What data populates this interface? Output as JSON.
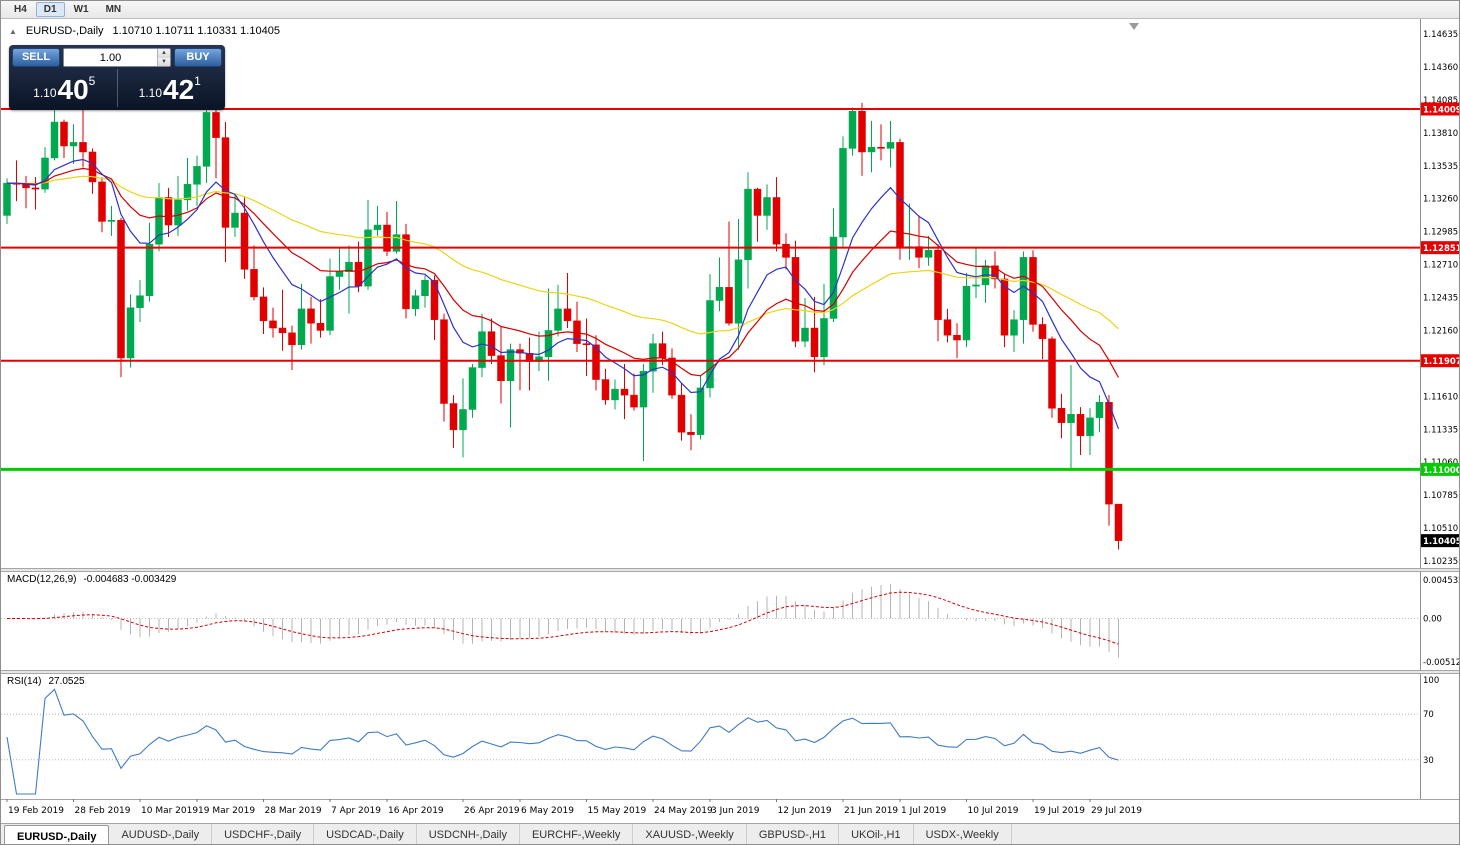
{
  "toolbar": {
    "timeframes": [
      {
        "label": "H4",
        "active": false
      },
      {
        "label": "D1",
        "active": true
      },
      {
        "label": "W1",
        "active": false
      },
      {
        "label": "MN",
        "active": false
      }
    ]
  },
  "chart_header": {
    "symbol": "EURUSD-,Daily",
    "ohlc_line": "1.10710 1.10711 1.10331 1.10405"
  },
  "icons": {
    "one_click_toggle": "▲",
    "spin_up": "▲",
    "spin_down": "▼",
    "shift_marker": "▼"
  },
  "one_click": {
    "sell_label": "SELL",
    "buy_label": "BUY",
    "volume": "1.00",
    "sell_price": {
      "prefix": "1.10",
      "big": "40",
      "sup": "5"
    },
    "buy_price": {
      "prefix": "1.10",
      "big": "42",
      "sup": "1"
    }
  },
  "indicators": {
    "macd": {
      "label": "MACD(12,26,9)",
      "values": "-0.004683 -0.003429"
    },
    "rsi": {
      "label": "RSI(14)",
      "value": "27.0525"
    }
  },
  "tabs": [
    {
      "label": "EURUSD-,Daily",
      "active": true
    },
    {
      "label": "AUDUSD-,Daily",
      "active": false
    },
    {
      "label": "USDCHF-,Daily",
      "active": false
    },
    {
      "label": "USDCAD-,Daily",
      "active": false
    },
    {
      "label": "USDCNH-,Daily",
      "active": false
    },
    {
      "label": "EURCHF-,Weekly",
      "active": false
    },
    {
      "label": "XAUUSD-,Weekly",
      "active": false
    },
    {
      "label": "GBPUSD-,H1",
      "active": false
    },
    {
      "label": "UKOil-,H1",
      "active": false
    },
    {
      "label": "USDX-,Weekly",
      "active": false
    }
  ],
  "chart_data": {
    "type": "candlestick",
    "title": "EURUSD-,Daily",
    "symbol": "EURUSD",
    "timeframe": "Daily",
    "colors": {
      "bull": "#00a950",
      "bear": "#e00000"
    },
    "y_axis": {
      "max": 1.14635,
      "min": 1.10235,
      "step": 0.00275,
      "labels": [
        "1.14635",
        "1.14360",
        "1.14085",
        "1.13810",
        "1.13535",
        "1.13260",
        "1.12985",
        "1.12710",
        "1.12435",
        "1.12160",
        "1.11885",
        "1.11610",
        "1.11335",
        "1.11060",
        "1.10785",
        "1.10510",
        "1.10235"
      ]
    },
    "x_ticks": [
      {
        "i": 0,
        "label": "19 Feb 2019"
      },
      {
        "i": 7,
        "label": "28 Feb 2019"
      },
      {
        "i": 14,
        "label": "10 Mar 2019"
      },
      {
        "i": 20,
        "label": "19 Mar 2019"
      },
      {
        "i": 27,
        "label": "28 Mar 2019"
      },
      {
        "i": 34,
        "label": "7 Apr 2019"
      },
      {
        "i": 40,
        "label": "16 Apr 2019"
      },
      {
        "i": 48,
        "label": "26 Apr 2019"
      },
      {
        "i": 54,
        "label": "6 May 2019"
      },
      {
        "i": 61,
        "label": "15 May 2019"
      },
      {
        "i": 68,
        "label": "24 May 2019"
      },
      {
        "i": 74,
        "label": "3 Jun 2019"
      },
      {
        "i": 81,
        "label": "12 Jun 2019"
      },
      {
        "i": 88,
        "label": "21 Jun 2019"
      },
      {
        "i": 94,
        "label": "1 Jul 2019"
      },
      {
        "i": 101,
        "label": "10 Jul 2019"
      },
      {
        "i": 108,
        "label": "19 Jul 2019"
      },
      {
        "i": 114,
        "label": "29 Jul 2019"
      }
    ],
    "dates": [
      "2019-02-19",
      "2019-02-20",
      "2019-02-21",
      "2019-02-22",
      "2019-02-25",
      "2019-02-26",
      "2019-02-27",
      "2019-02-28",
      "2019-03-01",
      "2019-03-04",
      "2019-03-05",
      "2019-03-06",
      "2019-03-07",
      "2019-03-08",
      "2019-03-11",
      "2019-03-12",
      "2019-03-13",
      "2019-03-14",
      "2019-03-15",
      "2019-03-18",
      "2019-03-19",
      "2019-03-20",
      "2019-03-21",
      "2019-03-22",
      "2019-03-25",
      "2019-03-26",
      "2019-03-27",
      "2019-03-28",
      "2019-03-29",
      "2019-04-01",
      "2019-04-02",
      "2019-04-03",
      "2019-04-04",
      "2019-04-05",
      "2019-04-08",
      "2019-04-09",
      "2019-04-10",
      "2019-04-11",
      "2019-04-12",
      "2019-04-15",
      "2019-04-16",
      "2019-04-17",
      "2019-04-18",
      "2019-04-19",
      "2019-04-22",
      "2019-04-23",
      "2019-04-24",
      "2019-04-25",
      "2019-04-26",
      "2019-04-29",
      "2019-04-30",
      "2019-05-01",
      "2019-05-02",
      "2019-05-03",
      "2019-05-06",
      "2019-05-07",
      "2019-05-08",
      "2019-05-09",
      "2019-05-10",
      "2019-05-13",
      "2019-05-14",
      "2019-05-15",
      "2019-05-16",
      "2019-05-17",
      "2019-05-20",
      "2019-05-21",
      "2019-05-22",
      "2019-05-23",
      "2019-05-24",
      "2019-05-27",
      "2019-05-28",
      "2019-05-29",
      "2019-05-30",
      "2019-05-31",
      "2019-06-03",
      "2019-06-04",
      "2019-06-05",
      "2019-06-06",
      "2019-06-07",
      "2019-06-10",
      "2019-06-11",
      "2019-06-12",
      "2019-06-13",
      "2019-06-14",
      "2019-06-17",
      "2019-06-18",
      "2019-06-19",
      "2019-06-20",
      "2019-06-21",
      "2019-06-24",
      "2019-06-25",
      "2019-06-26",
      "2019-06-27",
      "2019-06-28",
      "2019-07-01",
      "2019-07-02",
      "2019-07-03",
      "2019-07-04",
      "2019-07-05",
      "2019-07-08",
      "2019-07-09",
      "2019-07-10",
      "2019-07-11",
      "2019-07-12",
      "2019-07-15",
      "2019-07-16",
      "2019-07-17",
      "2019-07-18",
      "2019-07-19",
      "2019-07-22",
      "2019-07-23",
      "2019-07-24",
      "2019-07-25",
      "2019-07-26",
      "2019-07-29",
      "2019-07-30",
      "2019-07-31",
      "2019-08-01"
    ],
    "ohlc": [
      [
        1.1312,
        1.1343,
        1.1305,
        1.1339
      ],
      [
        1.1339,
        1.1358,
        1.1324,
        1.1338
      ],
      [
        1.1338,
        1.1345,
        1.1318,
        1.1335
      ],
      [
        1.1335,
        1.1344,
        1.1317,
        1.1334
      ],
      [
        1.1334,
        1.1369,
        1.1331,
        1.136
      ],
      [
        1.136,
        1.1401,
        1.1358,
        1.139
      ],
      [
        1.139,
        1.1392,
        1.136,
        1.137
      ],
      [
        1.137,
        1.1388,
        1.1355,
        1.1373
      ],
      [
        1.1373,
        1.14,
        1.1352,
        1.1365
      ],
      [
        1.1365,
        1.1368,
        1.133,
        1.134
      ],
      [
        1.134,
        1.1344,
        1.1298,
        1.1307
      ],
      [
        1.1307,
        1.132,
        1.1295,
        1.1308
      ],
      [
        1.1308,
        1.131,
        1.1177,
        1.1193
      ],
      [
        1.1193,
        1.1246,
        1.1185,
        1.1235
      ],
      [
        1.1235,
        1.1258,
        1.1223,
        1.1245
      ],
      [
        1.1245,
        1.1306,
        1.124,
        1.1288
      ],
      [
        1.1288,
        1.1339,
        1.1282,
        1.1327
      ],
      [
        1.1327,
        1.1335,
        1.1294,
        1.1304
      ],
      [
        1.1304,
        1.1345,
        1.1295,
        1.1325
      ],
      [
        1.1325,
        1.136,
        1.1316,
        1.1338
      ],
      [
        1.1338,
        1.1362,
        1.132,
        1.1353
      ],
      [
        1.1353,
        1.1405,
        1.1339,
        1.1398
      ],
      [
        1.1398,
        1.1404,
        1.1343,
        1.1377
      ],
      [
        1.1377,
        1.139,
        1.1273,
        1.1302
      ],
      [
        1.1302,
        1.133,
        1.1294,
        1.1314
      ],
      [
        1.1314,
        1.1327,
        1.1259,
        1.1267
      ],
      [
        1.1267,
        1.1287,
        1.1241,
        1.1244
      ],
      [
        1.1244,
        1.1252,
        1.1213,
        1.1224
      ],
      [
        1.1224,
        1.1235,
        1.121,
        1.1218
      ],
      [
        1.1218,
        1.125,
        1.1199,
        1.1214
      ],
      [
        1.1214,
        1.122,
        1.1183,
        1.1204
      ],
      [
        1.1204,
        1.1255,
        1.12,
        1.1234
      ],
      [
        1.1234,
        1.1244,
        1.1205,
        1.1222
      ],
      [
        1.1222,
        1.1242,
        1.121,
        1.1216
      ],
      [
        1.1216,
        1.1276,
        1.1212,
        1.1261
      ],
      [
        1.1261,
        1.1285,
        1.125,
        1.1265
      ],
      [
        1.1265,
        1.1287,
        1.123,
        1.1273
      ],
      [
        1.1273,
        1.129,
        1.1248,
        1.1253
      ],
      [
        1.1253,
        1.1325,
        1.125,
        1.13
      ],
      [
        1.13,
        1.132,
        1.1295,
        1.1304
      ],
      [
        1.1304,
        1.1315,
        1.1278,
        1.1282
      ],
      [
        1.1282,
        1.1324,
        1.128,
        1.1296
      ],
      [
        1.1296,
        1.1305,
        1.1226,
        1.1234
      ],
      [
        1.1234,
        1.125,
        1.1228,
        1.1245
      ],
      [
        1.1245,
        1.1262,
        1.1235,
        1.1258
      ],
      [
        1.1258,
        1.1262,
        1.1208,
        1.1225
      ],
      [
        1.1225,
        1.123,
        1.114,
        1.1155
      ],
      [
        1.1155,
        1.1162,
        1.1118,
        1.1133
      ],
      [
        1.1133,
        1.1176,
        1.111,
        1.115
      ],
      [
        1.115,
        1.1188,
        1.1143,
        1.1185
      ],
      [
        1.1185,
        1.123,
        1.1177,
        1.1215
      ],
      [
        1.1215,
        1.1226,
        1.1188,
        1.1195
      ],
      [
        1.1195,
        1.1219,
        1.1155,
        1.1174
      ],
      [
        1.1174,
        1.1205,
        1.1135,
        1.12
      ],
      [
        1.12,
        1.1205,
        1.1166,
        1.1197
      ],
      [
        1.1197,
        1.121,
        1.1166,
        1.119
      ],
      [
        1.119,
        1.1215,
        1.1182,
        1.1194
      ],
      [
        1.1194,
        1.1251,
        1.1174,
        1.1216
      ],
      [
        1.1216,
        1.1254,
        1.1211,
        1.1234
      ],
      [
        1.1234,
        1.1264,
        1.1218,
        1.1224
      ],
      [
        1.1224,
        1.124,
        1.1198,
        1.1205
      ],
      [
        1.1205,
        1.1226,
        1.1178,
        1.1204
      ],
      [
        1.1204,
        1.1212,
        1.1166,
        1.1175
      ],
      [
        1.1175,
        1.1184,
        1.1154,
        1.1158
      ],
      [
        1.1158,
        1.1175,
        1.115,
        1.1167
      ],
      [
        1.1167,
        1.1188,
        1.1142,
        1.1162
      ],
      [
        1.1162,
        1.118,
        1.1149,
        1.1152
      ],
      [
        1.1152,
        1.1188,
        1.1107,
        1.1182
      ],
      [
        1.1182,
        1.1213,
        1.1164,
        1.1205
      ],
      [
        1.1205,
        1.1215,
        1.1187,
        1.1193
      ],
      [
        1.1193,
        1.1201,
        1.1159,
        1.1162
      ],
      [
        1.1162,
        1.1172,
        1.1124,
        1.1131
      ],
      [
        1.1131,
        1.1146,
        1.1116,
        1.1129
      ],
      [
        1.1129,
        1.1178,
        1.1125,
        1.1168
      ],
      [
        1.1168,
        1.1263,
        1.116,
        1.1241
      ],
      [
        1.1241,
        1.1277,
        1.1232,
        1.1252
      ],
      [
        1.1252,
        1.1307,
        1.122,
        1.1222
      ],
      [
        1.1222,
        1.1309,
        1.12,
        1.1275
      ],
      [
        1.1275,
        1.1348,
        1.1251,
        1.1334
      ],
      [
        1.1334,
        1.1335,
        1.129,
        1.1312
      ],
      [
        1.1312,
        1.1338,
        1.13,
        1.1327
      ],
      [
        1.1327,
        1.1344,
        1.1282,
        1.1288
      ],
      [
        1.1288,
        1.1297,
        1.1267,
        1.1277
      ],
      [
        1.1277,
        1.1291,
        1.1202,
        1.1207
      ],
      [
        1.1207,
        1.1243,
        1.1202,
        1.1218
      ],
      [
        1.1218,
        1.1244,
        1.1181,
        1.1194
      ],
      [
        1.1194,
        1.1255,
        1.1187,
        1.1226
      ],
      [
        1.1226,
        1.1318,
        1.1223,
        1.1294
      ],
      [
        1.1294,
        1.1378,
        1.1286,
        1.1368
      ],
      [
        1.1368,
        1.1402,
        1.1362,
        1.1399
      ],
      [
        1.1399,
        1.1406,
        1.1345,
        1.1365
      ],
      [
        1.1365,
        1.1391,
        1.1348,
        1.1369
      ],
      [
        1.1369,
        1.1388,
        1.1358,
        1.1368
      ],
      [
        1.1368,
        1.1391,
        1.1352,
        1.1373
      ],
      [
        1.1373,
        1.1376,
        1.1275,
        1.1285
      ],
      [
        1.1285,
        1.1322,
        1.1275,
        1.1286
      ],
      [
        1.1286,
        1.1312,
        1.1268,
        1.1277
      ],
      [
        1.1277,
        1.1295,
        1.127,
        1.1283
      ],
      [
        1.1283,
        1.1288,
        1.1207,
        1.1225
      ],
      [
        1.1225,
        1.1234,
        1.1206,
        1.1212
      ],
      [
        1.1212,
        1.1222,
        1.1193,
        1.1208
      ],
      [
        1.1208,
        1.1264,
        1.1202,
        1.1253
      ],
      [
        1.1253,
        1.1286,
        1.1243,
        1.1254
      ],
      [
        1.1254,
        1.1275,
        1.1239,
        1.127
      ],
      [
        1.127,
        1.1282,
        1.1251,
        1.1259
      ],
      [
        1.1259,
        1.1263,
        1.1202,
        1.1212
      ],
      [
        1.1212,
        1.1233,
        1.1198,
        1.1225
      ],
      [
        1.1225,
        1.1282,
        1.1205,
        1.1277
      ],
      [
        1.1277,
        1.1283,
        1.1215,
        1.1221
      ],
      [
        1.1221,
        1.1227,
        1.1192,
        1.1209
      ],
      [
        1.1209,
        1.1211,
        1.1143,
        1.1151
      ],
      [
        1.1151,
        1.1163,
        1.1126,
        1.1139
      ],
      [
        1.1139,
        1.1187,
        1.1101,
        1.1146
      ],
      [
        1.1146,
        1.1152,
        1.1112,
        1.1128
      ],
      [
        1.1128,
        1.1151,
        1.1112,
        1.1143
      ],
      [
        1.1143,
        1.1162,
        1.1131,
        1.1156
      ],
      [
        1.1156,
        1.1162,
        1.1053,
        1.1071
      ],
      [
        1.1071,
        1.10711,
        1.10331,
        1.10405
      ]
    ],
    "moving_averages": [
      {
        "period": 50,
        "method": "ema",
        "color": "#ecd414"
      },
      {
        "period": 20,
        "method": "ema",
        "color": "#d40000"
      },
      {
        "period": 10,
        "method": "ema",
        "color": "#2d32c8"
      }
    ],
    "hlines": [
      {
        "price": 1.14009,
        "label": "1.14009",
        "color": "#e60000",
        "width": 2
      },
      {
        "price": 1.12851,
        "label": "1.12851",
        "color": "#e60000",
        "width": 2
      },
      {
        "price": 1.11907,
        "label": "1.11907",
        "color": "#e60000",
        "width": 2
      },
      {
        "price": 1.11,
        "label": "1.11000",
        "color": "#00cc00",
        "width": 3
      }
    ],
    "current_price": {
      "price": 1.10405,
      "label": "1.10405",
      "color": "#000000"
    },
    "macd": {
      "fast": 12,
      "slow": 26,
      "signal": 9,
      "main_value": -0.004683,
      "signal_value": -0.003429,
      "hist_color": "#b4b4b4",
      "signal_color": "#d40000",
      "axis": {
        "max": 0.004532,
        "min": -0.005122
      },
      "axis_labels": [
        "0.004532",
        "0.00",
        "-0.005122"
      ]
    },
    "rsi": {
      "period": 14,
      "value": 27.0525,
      "color": "#3f7cc4",
      "levels": [
        70,
        30
      ],
      "range": [
        0,
        100
      ],
      "axis_labels": [
        "100",
        "70",
        "30"
      ]
    }
  }
}
